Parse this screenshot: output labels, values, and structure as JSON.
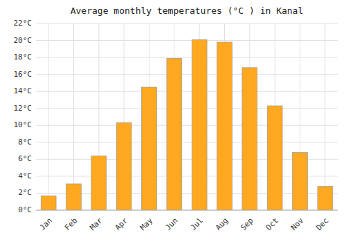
{
  "chart_data": {
    "type": "bar",
    "title": "Average monthly temperatures (°C ) in Kanal",
    "categories": [
      "Jan",
      "Feb",
      "Mar",
      "Apr",
      "May",
      "Jun",
      "Jul",
      "Aug",
      "Sep",
      "Oct",
      "Nov",
      "Dec"
    ],
    "values": [
      1.7,
      3.1,
      6.4,
      10.3,
      14.5,
      17.9,
      20.1,
      19.8,
      16.8,
      12.3,
      6.8,
      2.8
    ],
    "color": "#FFA820",
    "ylim": [
      0,
      22
    ],
    "yticks": [
      {
        "value": 0,
        "label": "0°C"
      },
      {
        "value": 2,
        "label": "2°C"
      },
      {
        "value": 4,
        "label": "4°C"
      },
      {
        "value": 6,
        "label": "6°C"
      },
      {
        "value": 8,
        "label": "8°C"
      },
      {
        "value": 10,
        "label": "10°C"
      },
      {
        "value": 12,
        "label": "12°C"
      },
      {
        "value": 14,
        "label": "14°C"
      },
      {
        "value": 16,
        "label": "16°C"
      },
      {
        "value": 18,
        "label": "18°C"
      },
      {
        "value": 20,
        "label": "20°C"
      },
      {
        "value": 22,
        "label": "22°C"
      }
    ],
    "grid": true
  }
}
